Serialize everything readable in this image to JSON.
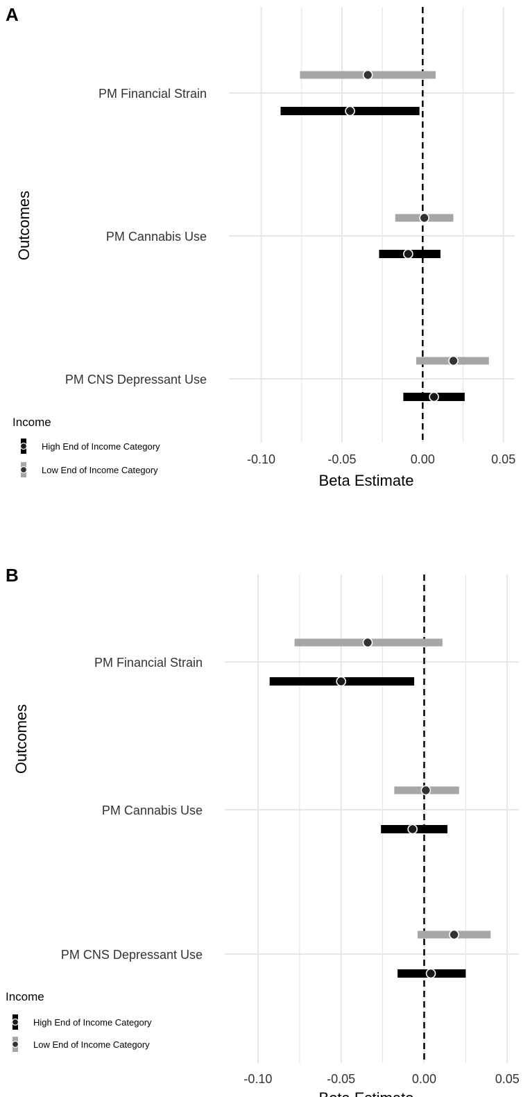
{
  "colors": {
    "high": "#000000",
    "low": "#a6a6a6",
    "grid": "#e6e6e6",
    "text": "#333333",
    "zero_line": "#000000"
  },
  "chart_data": [
    {
      "type": "forest",
      "panel_label": "A",
      "xlabel": "Beta Estimate",
      "ylabel": "Outcomes",
      "xlim": [
        -0.12,
        0.057
      ],
      "xticks": [
        -0.1,
        -0.05,
        0.0,
        0.05
      ],
      "xtick_labels": [
        "-0.10",
        "-0.05",
        "0.00",
        "0.05"
      ],
      "reference_line": 0,
      "categories": [
        "PM Financial Strain",
        "PM Cannabis Use",
        "PM CNS Depressant Use"
      ],
      "legend": {
        "title": "Income",
        "position": "bottom-left",
        "entries": [
          "High End of Income Category",
          "Low End of Income Category"
        ]
      },
      "series": [
        {
          "name": "High End of Income Category",
          "color": "#000000",
          "estimates": [
            -0.045,
            -0.009,
            0.007
          ],
          "lower": [
            -0.088,
            -0.027,
            -0.012
          ],
          "upper": [
            -0.002,
            0.011,
            0.026
          ]
        },
        {
          "name": "Low End of Income Category",
          "color": "#a6a6a6",
          "estimates": [
            -0.034,
            0.001,
            0.019
          ],
          "lower": [
            -0.076,
            -0.017,
            -0.004
          ],
          "upper": [
            0.008,
            0.019,
            0.041
          ]
        }
      ]
    },
    {
      "type": "forest",
      "panel_label": "B",
      "xlabel": "Beta Estimate",
      "ylabel": "Outcomes",
      "xlim": [
        -0.12,
        0.057
      ],
      "xticks": [
        -0.1,
        -0.05,
        0.0,
        0.05
      ],
      "xtick_labels": [
        "-0.10",
        "-0.05",
        "0.00",
        "0.05"
      ],
      "reference_line": 0,
      "categories": [
        "PM Financial Strain",
        "PM Cannabis Use",
        "PM CNS Depressant Use"
      ],
      "legend": {
        "title": "Income",
        "position": "bottom-left",
        "entries": [
          "High End of Income Category",
          "Low End of Income Category"
        ]
      },
      "series": [
        {
          "name": "High End of Income Category",
          "color": "#000000",
          "estimates": [
            -0.05,
            -0.007,
            0.004
          ],
          "lower": [
            -0.093,
            -0.026,
            -0.016
          ],
          "upper": [
            -0.006,
            0.014,
            0.025
          ]
        },
        {
          "name": "Low End of Income Category",
          "color": "#a6a6a6",
          "estimates": [
            -0.034,
            0.001,
            0.018
          ],
          "lower": [
            -0.078,
            -0.018,
            -0.004
          ],
          "upper": [
            0.011,
            0.021,
            0.04
          ]
        }
      ]
    }
  ]
}
